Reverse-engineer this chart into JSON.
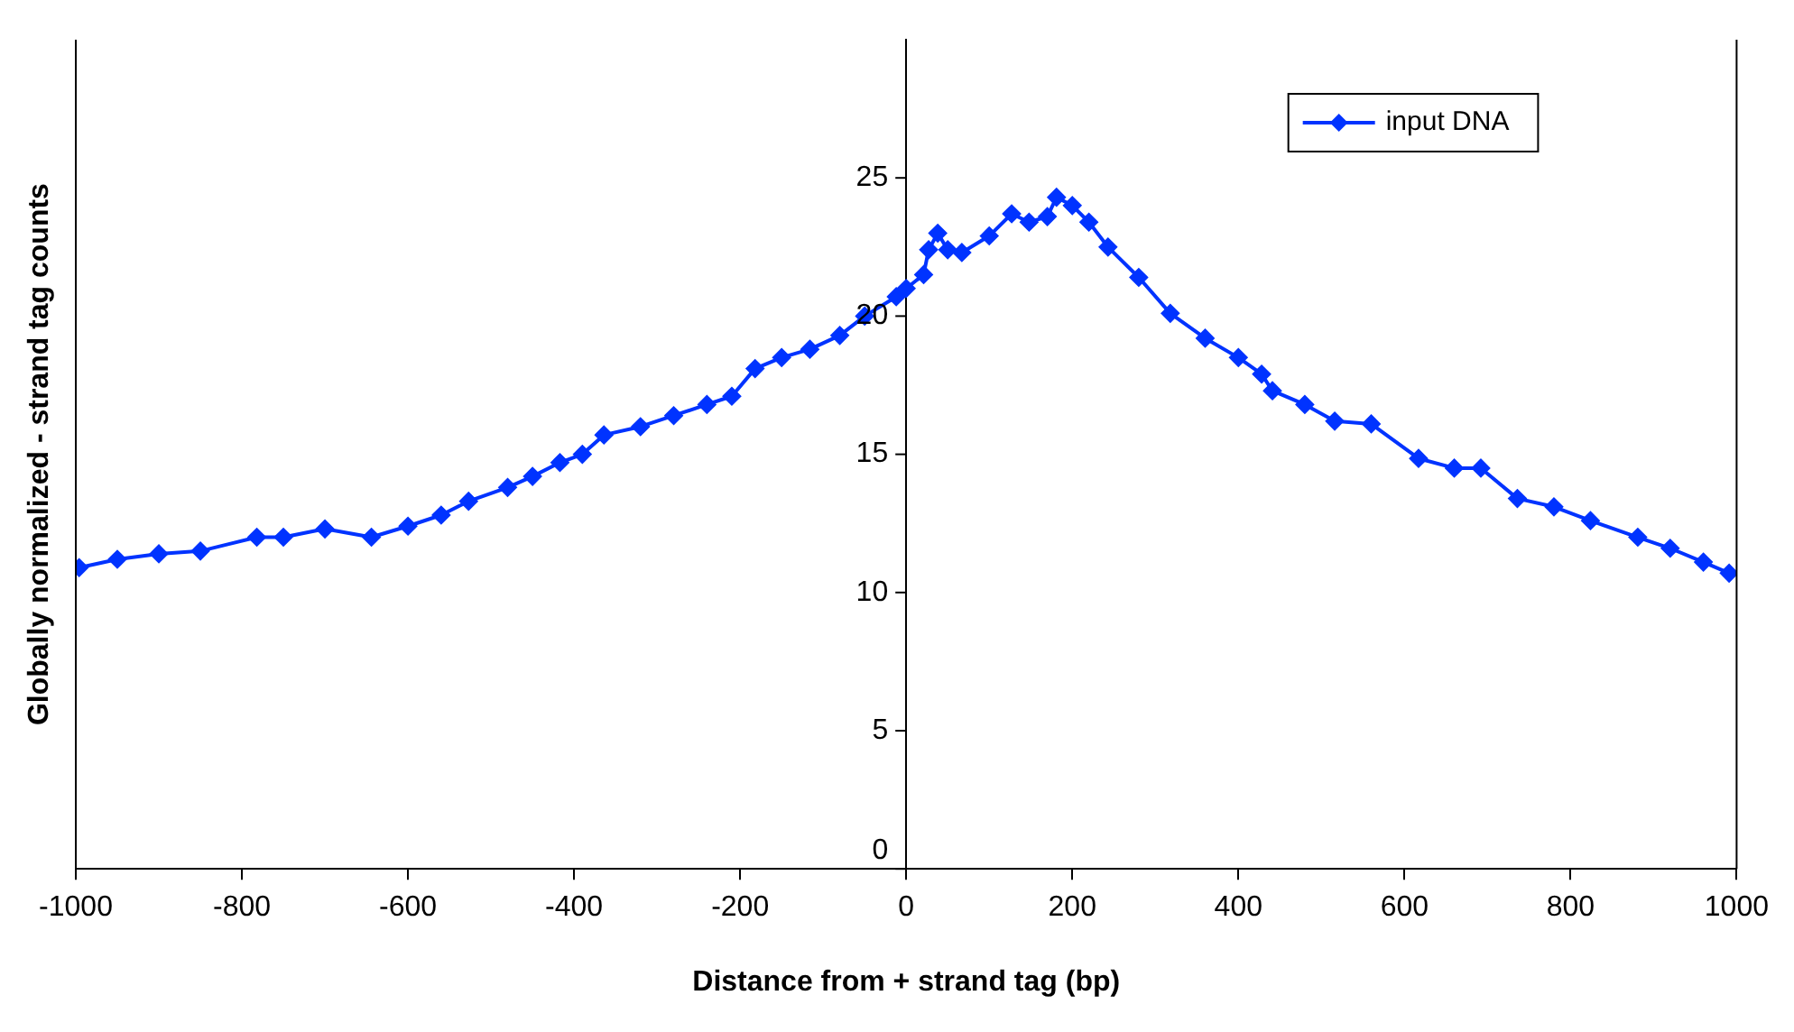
{
  "chart_data": {
    "type": "line",
    "xlabel": "Distance from + strand tag (bp)",
    "ylabel": "Globally normalized - strand tag counts",
    "xlim": [
      -1000,
      1000
    ],
    "xticks": [
      -1000,
      -800,
      -600,
      -400,
      -200,
      0,
      200,
      400,
      600,
      800,
      1000
    ],
    "ylim": [
      0,
      30
    ],
    "yticks": [
      0,
      5,
      10,
      15,
      20,
      25
    ],
    "grid": false,
    "legend": "top right",
    "marker": "diamond",
    "line_style": "solid",
    "series": [
      {
        "name": "input DNA",
        "color": "#0033ff",
        "x": [
          -996,
          -950,
          -900,
          -850,
          -782,
          -750,
          -700,
          -644,
          -600,
          -560,
          -527,
          -480,
          -450,
          -417,
          -390,
          -364,
          -320,
          -280,
          -240,
          -210,
          -182,
          -150,
          -116,
          -80,
          -50,
          -12,
          0,
          21,
          27,
          38,
          50,
          67,
          100,
          127,
          148,
          170,
          181,
          200,
          220,
          243,
          280,
          318,
          360,
          400,
          428,
          441,
          480,
          516,
          560,
          617,
          660,
          692,
          736,
          780,
          824,
          881,
          920,
          960,
          991
        ],
        "values": [
          10.9,
          11.2,
          11.4,
          11.5,
          12.0,
          12.0,
          12.3,
          12.0,
          12.4,
          12.8,
          13.3,
          13.8,
          14.2,
          14.7,
          15.0,
          15.7,
          16.0,
          16.4,
          16.8,
          17.1,
          18.1,
          18.5,
          18.8,
          19.3,
          20.0,
          20.7,
          21.0,
          21.5,
          22.4,
          23.0,
          22.4,
          22.3,
          22.9,
          23.7,
          23.4,
          23.6,
          24.3,
          24.0,
          23.4,
          22.5,
          21.4,
          20.1,
          19.2,
          18.5,
          17.9,
          17.3,
          16.8,
          16.2,
          16.1,
          14.85,
          14.5,
          14.5,
          13.4,
          13.1,
          12.6,
          12.0,
          11.6,
          11.1,
          10.7
        ]
      }
    ]
  }
}
